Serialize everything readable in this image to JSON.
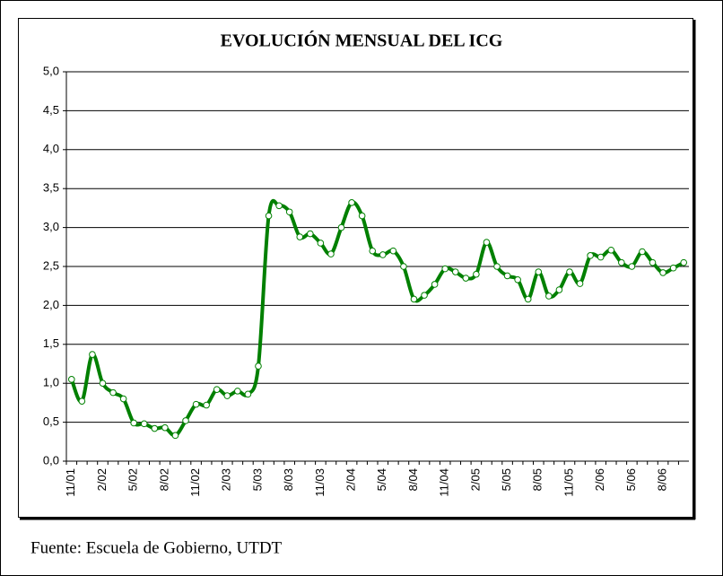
{
  "chart_data": {
    "type": "line",
    "title": "EVOLUCIÓN MENSUAL DEL ICG",
    "source": "Fuente: Escuela de Gobierno, UTDT",
    "categories": [
      "11/01",
      null,
      null,
      "2/02",
      null,
      null,
      "5/02",
      null,
      null,
      "8/02",
      null,
      null,
      "11/02",
      null,
      null,
      "2/03",
      null,
      null,
      "5/03",
      null,
      null,
      "8/03",
      null,
      null,
      "11/03",
      null,
      null,
      "2/04",
      null,
      null,
      "5/04",
      null,
      null,
      "8/04",
      null,
      null,
      "11/04",
      null,
      null,
      "2/05",
      null,
      null,
      "5/05",
      null,
      null,
      "8/05",
      null,
      null,
      "11/05",
      null,
      null,
      "2/06",
      null,
      null,
      "5/06",
      null,
      null,
      "8/06",
      null,
      null
    ],
    "series": [
      {
        "name": "ICG",
        "color": "#008000",
        "values": [
          1.05,
          0.77,
          1.37,
          1.0,
          0.88,
          0.8,
          0.49,
          0.48,
          0.42,
          0.43,
          0.33,
          0.52,
          0.73,
          0.72,
          0.92,
          0.84,
          0.9,
          0.86,
          1.22,
          3.15,
          3.28,
          3.2,
          2.88,
          2.92,
          2.8,
          2.66,
          3.0,
          3.32,
          3.15,
          2.7,
          2.65,
          2.7,
          2.5,
          2.08,
          2.13,
          2.27,
          2.47,
          2.43,
          2.35,
          2.4,
          2.81,
          2.5,
          2.38,
          2.33,
          2.08,
          2.43,
          2.12,
          2.2,
          2.43,
          2.28,
          2.64,
          2.62,
          2.71,
          2.55,
          2.5,
          2.69,
          2.55,
          2.42,
          2.48,
          2.55
        ]
      }
    ],
    "ylim": [
      0,
      5
    ],
    "yticks": [
      {
        "value": 0,
        "label": "0,0"
      },
      {
        "value": 0.5,
        "label": "0,5"
      },
      {
        "value": 1,
        "label": "1,0"
      },
      {
        "value": 1.5,
        "label": "1,5"
      },
      {
        "value": 2,
        "label": "2,0"
      },
      {
        "value": 2.5,
        "label": "2,5"
      },
      {
        "value": 3,
        "label": "3,0"
      },
      {
        "value": 3.5,
        "label": "3,5"
      },
      {
        "value": 4,
        "label": "4,0"
      },
      {
        "value": 4.5,
        "label": "4,5"
      },
      {
        "value": 5,
        "label": "5,0"
      }
    ],
    "grid": true
  }
}
